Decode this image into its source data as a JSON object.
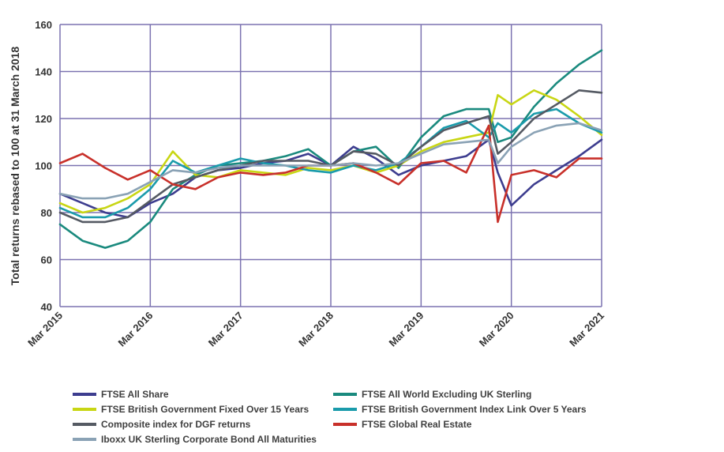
{
  "chart_data": {
    "type": "line",
    "ylabel": "Total returns rebased to 100 at 31 March 2018",
    "xlabel": "",
    "ylim": [
      40,
      160
    ],
    "y_ticks": [
      "40",
      "60",
      "80",
      "100",
      "120",
      "140",
      "160"
    ],
    "xlim": [
      2015.25,
      2021.25
    ],
    "x_ticks": [
      "Mar 2015",
      "Mar 2016",
      "Mar 2017",
      "Mar 2018",
      "Mar 2019",
      "Mar 2020",
      "Mar 2021"
    ],
    "grid": true,
    "legend_position": "bottom",
    "series": [
      {
        "name": "FTSE All Share",
        "color": "#3d3d8f",
        "x": [
          2015.25,
          2015.5,
          2015.75,
          2016.0,
          2016.25,
          2016.5,
          2016.75,
          2017.0,
          2017.25,
          2017.5,
          2017.75,
          2018.0,
          2018.25,
          2018.5,
          2018.75,
          2019.0,
          2019.25,
          2019.5,
          2019.75,
          2020.0,
          2020.1,
          2020.25,
          2020.5,
          2020.75,
          2021.0,
          2021.25
        ],
        "values": [
          88,
          84,
          80,
          78,
          84,
          88,
          95,
          98,
          99,
          101,
          102,
          105,
          100,
          108,
          103,
          96,
          100,
          102,
          104,
          111,
          97,
          83,
          92,
          98,
          104,
          111
        ]
      },
      {
        "name": "FTSE All World Excluding UK Sterling",
        "color": "#1a8a7e",
        "x": [
          2015.25,
          2015.5,
          2015.75,
          2016.0,
          2016.25,
          2016.5,
          2016.75,
          2017.0,
          2017.25,
          2017.5,
          2017.75,
          2018.0,
          2018.25,
          2018.5,
          2018.75,
          2019.0,
          2019.25,
          2019.5,
          2019.75,
          2020.0,
          2020.1,
          2020.25,
          2020.5,
          2020.75,
          2021.0,
          2021.25
        ],
        "values": [
          75,
          68,
          65,
          68,
          76,
          90,
          96,
          100,
          101,
          102,
          104,
          107,
          100,
          106,
          108,
          99,
          112,
          121,
          124,
          124,
          110,
          112,
          125,
          135,
          143,
          149
        ]
      },
      {
        "name": "FTSE British Government Fixed Over 15 Years",
        "color": "#c8d614",
        "x": [
          2015.25,
          2015.5,
          2015.75,
          2016.0,
          2016.25,
          2016.5,
          2016.75,
          2017.0,
          2017.25,
          2017.5,
          2017.75,
          2018.0,
          2018.25,
          2018.5,
          2018.75,
          2019.0,
          2019.25,
          2019.5,
          2019.75,
          2020.0,
          2020.1,
          2020.25,
          2020.5,
          2020.75,
          2021.0,
          2021.25
        ],
        "values": [
          84,
          80,
          82,
          86,
          92,
          106,
          96,
          95,
          98,
          97,
          96,
          99,
          98,
          100,
          97,
          100,
          106,
          110,
          112,
          114,
          130,
          126,
          132,
          128,
          121,
          113
        ]
      },
      {
        "name": "FTSE British Government Index Link Over 5 Years",
        "color": "#1a9bab",
        "x": [
          2015.25,
          2015.5,
          2015.75,
          2016.0,
          2016.25,
          2016.5,
          2016.75,
          2017.0,
          2017.25,
          2017.5,
          2017.75,
          2018.0,
          2018.25,
          2018.5,
          2018.75,
          2019.0,
          2019.25,
          2019.5,
          2019.75,
          2020.0,
          2020.1,
          2020.25,
          2020.5,
          2020.75,
          2021.0,
          2021.25
        ],
        "values": [
          82,
          78,
          78,
          82,
          90,
          102,
          97,
          100,
          103,
          101,
          100,
          98,
          97,
          100,
          98,
          101,
          108,
          116,
          119,
          112,
          118,
          114,
          122,
          124,
          118,
          114
        ]
      },
      {
        "name": "Composite index for DGF returns",
        "color": "#555a63",
        "x": [
          2015.25,
          2015.5,
          2015.75,
          2016.0,
          2016.25,
          2016.5,
          2016.75,
          2017.0,
          2017.25,
          2017.5,
          2017.75,
          2018.0,
          2018.25,
          2018.5,
          2018.75,
          2019.0,
          2019.25,
          2019.5,
          2019.75,
          2020.0,
          2020.1,
          2020.25,
          2020.5,
          2020.75,
          2021.0,
          2021.25
        ],
        "values": [
          80,
          76,
          76,
          78,
          85,
          92,
          95,
          98,
          100,
          102,
          102,
          102,
          100,
          106,
          105,
          100,
          108,
          115,
          118,
          121,
          105,
          110,
          120,
          126,
          132,
          131
        ]
      },
      {
        "name": "FTSE Global Real Estate",
        "color": "#c8302a",
        "x": [
          2015.25,
          2015.5,
          2015.75,
          2016.0,
          2016.25,
          2016.5,
          2016.75,
          2017.0,
          2017.25,
          2017.5,
          2017.75,
          2018.0,
          2018.25,
          2018.5,
          2018.75,
          2019.0,
          2019.25,
          2019.5,
          2019.75,
          2020.0,
          2020.1,
          2020.25,
          2020.5,
          2020.75,
          2021.0,
          2021.25
        ],
        "values": [
          101,
          105,
          99,
          94,
          98,
          92,
          90,
          95,
          97,
          96,
          97,
          100,
          100,
          101,
          97,
          92,
          101,
          102,
          97,
          117,
          76,
          96,
          98,
          95,
          103,
          103
        ]
      },
      {
        "name": "Iboxx UK Sterling Corporate Bond All Maturities",
        "color": "#8aa2b5",
        "x": [
          2015.25,
          2015.5,
          2015.75,
          2016.0,
          2016.25,
          2016.5,
          2016.75,
          2017.0,
          2017.25,
          2017.5,
          2017.75,
          2018.0,
          2018.25,
          2018.5,
          2018.75,
          2019.0,
          2019.25,
          2019.5,
          2019.75,
          2020.0,
          2020.1,
          2020.25,
          2020.5,
          2020.75,
          2021.0,
          2021.25
        ],
        "values": [
          88,
          86,
          86,
          88,
          93,
          98,
          97,
          99,
          100,
          100,
          100,
          100,
          100,
          101,
          100,
          101,
          105,
          109,
          110,
          111,
          101,
          108,
          114,
          117,
          118,
          115
        ]
      }
    ]
  }
}
